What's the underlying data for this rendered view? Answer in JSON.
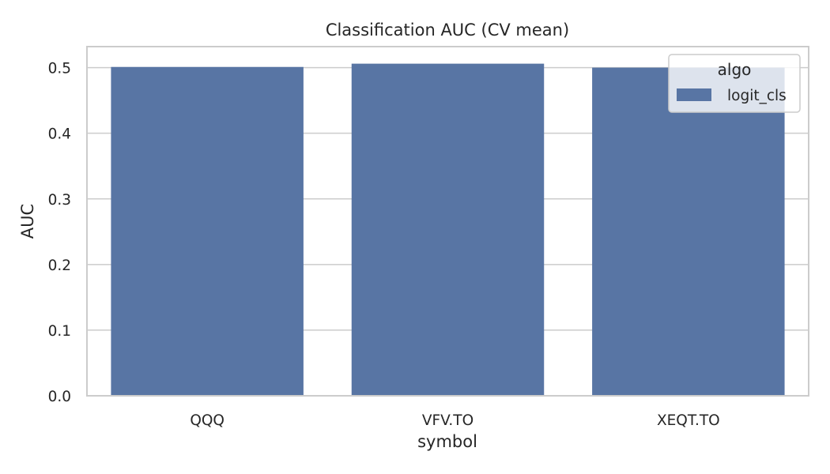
{
  "chart_data": {
    "type": "bar",
    "title": "Classification AUC (CV mean)",
    "xlabel": "symbol",
    "ylabel": "AUC",
    "categories": [
      "QQQ",
      "VFV.TO",
      "XEQT.TO"
    ],
    "series": [
      {
        "name": "logit_cls",
        "values": [
          0.501,
          0.506,
          0.5
        ]
      }
    ],
    "ylim": [
      0,
      0.532
    ],
    "yticks": [
      0.0,
      0.1,
      0.2,
      0.3,
      0.4,
      0.5
    ],
    "ytick_labels": [
      "0.0",
      "0.1",
      "0.2",
      "0.3",
      "0.4",
      "0.5"
    ],
    "grid": true,
    "legend": {
      "title": "algo",
      "placement": "top-right"
    },
    "colors": {
      "bar": "#5875a4",
      "grid": "#cccccc",
      "text": "#262626"
    }
  }
}
